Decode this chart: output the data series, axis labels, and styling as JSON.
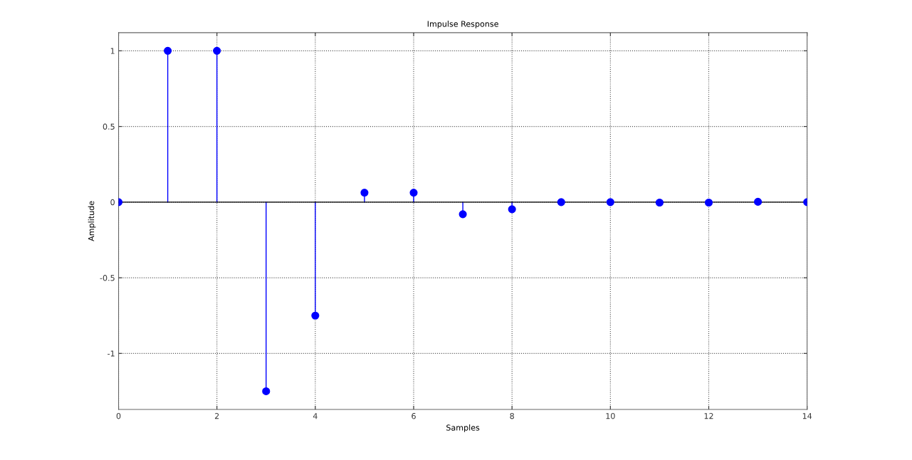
{
  "chart_data": {
    "type": "lollipop",
    "title": "Impulse Response",
    "xlabel": "Samples",
    "ylabel": "Amplitude",
    "x": [
      0,
      1,
      2,
      3,
      4,
      5,
      6,
      7,
      8,
      9,
      10,
      11,
      12,
      13,
      14
    ],
    "series": [
      {
        "color": "#0000ff",
        "values": [
          0,
          1,
          1,
          -1.25,
          -0.75,
          0.0625,
          0.0625,
          -0.08,
          -0.047,
          0,
          0,
          -0.003,
          -0.003,
          0.002,
          0
        ]
      }
    ],
    "xlim": [
      0,
      14
    ],
    "xticks": [
      0,
      2,
      4,
      6,
      8,
      10,
      12,
      14
    ],
    "ylim": [
      -1.37,
      1.12
    ],
    "yticks": [
      -1,
      -0.5,
      0,
      0.5,
      1
    ],
    "grid": true,
    "marker": "circle",
    "line_style": "solid"
  }
}
